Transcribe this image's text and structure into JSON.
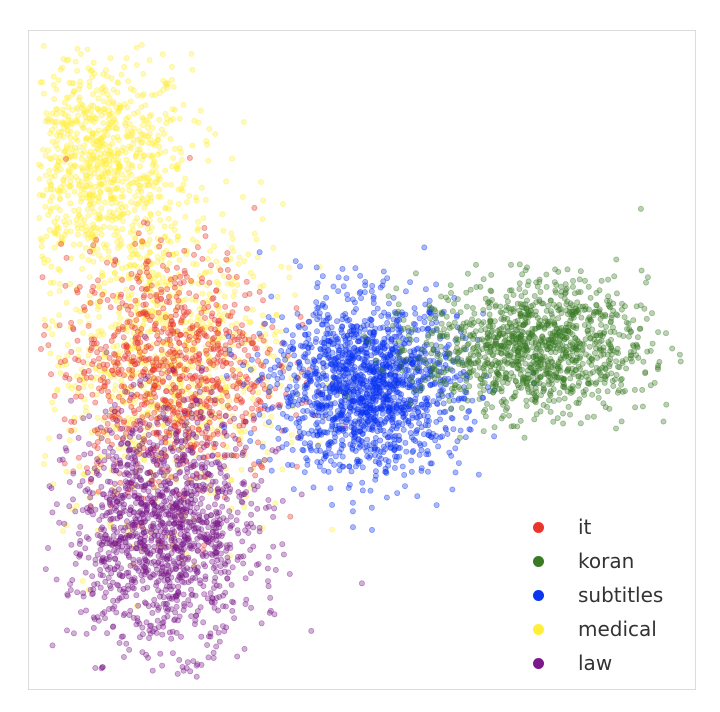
{
  "chart_data": {
    "type": "scatter",
    "title": "",
    "xlabel": "",
    "ylabel": "",
    "xlim": [
      0,
      100
    ],
    "ylim": [
      0,
      100
    ],
    "grid": false,
    "legend_placement": "bottom-right",
    "point_alpha": 0.35,
    "series": [
      {
        "name": "it",
        "color": "#e8372a",
        "count": 900,
        "clusters": [
          {
            "cx": 21,
            "cy": 49,
            "sx": 8,
            "sy": 9
          }
        ]
      },
      {
        "name": "koran",
        "color": "#3a7a24",
        "count": 1200,
        "clusters": [
          {
            "cx": 76,
            "cy": 52,
            "sx": 8.5,
            "sy": 5
          }
        ]
      },
      {
        "name": "subtitles",
        "color": "#0b35f0",
        "count": 1600,
        "clusters": [
          {
            "cx": 51,
            "cy": 46,
            "sx": 7,
            "sy": 6.5
          }
        ]
      },
      {
        "name": "medical",
        "color": "#ffef3a",
        "count": 1800,
        "clusters": [
          {
            "cx": 10,
            "cy": 80,
            "sx": 7,
            "sy": 8.5
          },
          {
            "cx": 20,
            "cy": 50,
            "sx": 9,
            "sy": 12
          }
        ]
      },
      {
        "name": "law",
        "color": "#7a1a8a",
        "count": 1400,
        "clusters": [
          {
            "cx": 20,
            "cy": 24,
            "sx": 7,
            "sy": 9
          }
        ]
      }
    ]
  }
}
